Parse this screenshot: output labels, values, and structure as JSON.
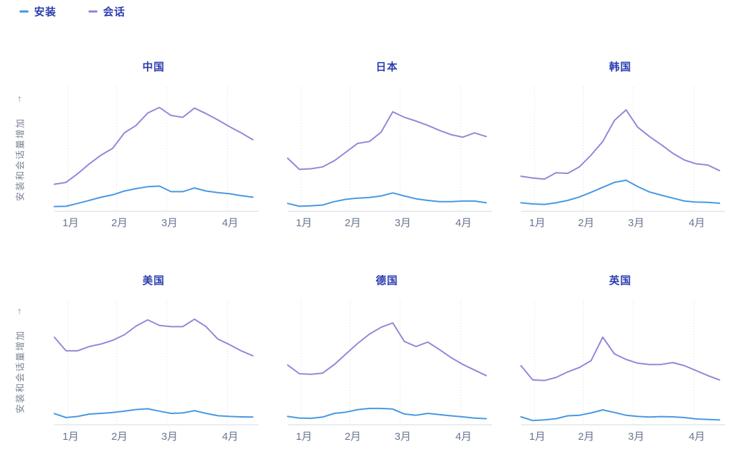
{
  "legend": {
    "items": [
      {
        "key": "installs",
        "label": "安装",
        "color": "#4697e3"
      },
      {
        "key": "sessions",
        "label": "会话",
        "color": "#9286d9"
      }
    ]
  },
  "y_axis": {
    "label": "安装和会话量增加",
    "arrow": "↑"
  },
  "x_ticks": [
    "1月",
    "2月",
    "3月",
    "4月"
  ],
  "colors": {
    "installs_line": "#4697e3",
    "sessions_line": "#9286d9",
    "title_text": "#2b3cae",
    "tick_text": "#68748e",
    "axis_line": "#d8dade",
    "gridline": "#d9dce4",
    "y_label_text": "#7b8294",
    "background": "#ffffff"
  },
  "chart_data": [
    {
      "type": "line",
      "title": "中国",
      "x_tick_labels": [
        "1月",
        "2月",
        "3月",
        "4月"
      ],
      "ylim": [
        0,
        100
      ],
      "y_units": "relative (no axis values shown)",
      "series": [
        {
          "key": "installs",
          "name": "安装",
          "values": [
            3.5,
            3.7,
            6,
            8.5,
            11,
            13,
            16,
            18,
            19.5,
            20,
            15.5,
            15.5,
            18.5,
            16,
            14.8,
            13.8,
            12.3,
            11
          ]
        },
        {
          "key": "sessions",
          "name": "会话",
          "values": [
            21.5,
            23,
            30,
            38,
            45,
            50.5,
            63,
            69,
            79,
            83.5,
            77,
            75.5,
            83,
            78.5,
            73.5,
            68,
            63,
            57.5
          ]
        }
      ]
    },
    {
      "type": "line",
      "title": "日本",
      "x_tick_labels": [
        "1月",
        "2月",
        "3月",
        "4月"
      ],
      "ylim": [
        0,
        100
      ],
      "y_units": "relative (no axis values shown)",
      "series": [
        {
          "key": "installs",
          "name": "安装",
          "values": [
            6,
            3.7,
            4.1,
            4.7,
            7.5,
            9.3,
            10.3,
            10.8,
            12,
            14.5,
            12,
            9.7,
            8.4,
            7.5,
            7.5,
            7.9,
            7.9,
            6.5
          ]
        },
        {
          "key": "sessions",
          "name": "会话",
          "values": [
            42.5,
            33.5,
            34,
            35.5,
            40.5,
            47.5,
            54.5,
            56,
            63.5,
            80,
            75.5,
            72.5,
            69,
            65,
            61.5,
            59.5,
            63,
            60
          ]
        }
      ]
    },
    {
      "type": "line",
      "title": "韩国",
      "x_tick_labels": [
        "1月",
        "2月",
        "3月",
        "4月"
      ],
      "ylim": [
        0,
        100
      ],
      "y_units": "relative (no axis values shown)",
      "series": [
        {
          "key": "installs",
          "name": "安装",
          "values": [
            6.5,
            5.6,
            5.2,
            6.5,
            8.4,
            11.2,
            15,
            19,
            23,
            24.7,
            19.6,
            15.3,
            12.7,
            10.3,
            7.9,
            7.1,
            6.9,
            6.2
          ]
        },
        {
          "key": "sessions",
          "name": "会话",
          "values": [
            28,
            26.5,
            25.6,
            30.8,
            30.3,
            35.5,
            45,
            56,
            73,
            81.5,
            67.5,
            60,
            53.5,
            46.5,
            41,
            38,
            37,
            32.5
          ]
        }
      ]
    },
    {
      "type": "line",
      "title": "美国",
      "x_tick_labels": [
        "1月",
        "2月",
        "3月",
        "4月"
      ],
      "ylim": [
        0,
        100
      ],
      "y_units": "relative (no axis values shown)",
      "series": [
        {
          "key": "installs",
          "name": "安装",
          "values": [
            8.8,
            5.6,
            6.5,
            8.4,
            9,
            9.7,
            10.8,
            12.1,
            12.7,
            10.8,
            9,
            9.3,
            11.2,
            9,
            7.1,
            6.5,
            6.2,
            6
          ]
        },
        {
          "key": "sessions",
          "name": "会话",
          "values": [
            70.5,
            59.5,
            59.5,
            63,
            65,
            68,
            72.5,
            79.5,
            84.5,
            80,
            79,
            79,
            85,
            79,
            69,
            64.5,
            59.5,
            55.5
          ]
        }
      ]
    },
    {
      "type": "line",
      "title": "德国",
      "x_tick_labels": [
        "1月",
        "2月",
        "3月",
        "4月"
      ],
      "ylim": [
        0,
        100
      ],
      "y_units": "relative (no axis values shown)",
      "series": [
        {
          "key": "installs",
          "name": "安装",
          "values": [
            6.5,
            5.2,
            5,
            6,
            9,
            10,
            12,
            13,
            13,
            12.5,
            8.5,
            7.5,
            9,
            8,
            7,
            6.2,
            5.2,
            4.7
          ]
        },
        {
          "key": "sessions",
          "name": "会话",
          "values": [
            48,
            41,
            40.5,
            41.5,
            48.5,
            57,
            65.5,
            73,
            78.5,
            82,
            67,
            63,
            66.5,
            60.5,
            54,
            48.5,
            44,
            39.5
          ]
        }
      ]
    },
    {
      "type": "line",
      "title": "英国",
      "x_tick_labels": [
        "1月",
        "2月",
        "3月",
        "4月"
      ],
      "ylim": [
        0,
        100
      ],
      "y_units": "relative (no axis values shown)",
      "series": [
        {
          "key": "installs",
          "name": "安装",
          "values": [
            6.2,
            3.2,
            3.7,
            4.7,
            7,
            7.5,
            9.3,
            11.8,
            9.7,
            7.5,
            6.5,
            6,
            6.4,
            6.2,
            5.6,
            4.5,
            4.1,
            3.7
          ]
        },
        {
          "key": "sessions",
          "name": "会话",
          "values": [
            47.5,
            36,
            35.5,
            38,
            42.5,
            46,
            51.5,
            70.5,
            57,
            52.5,
            49.5,
            48.5,
            48.5,
            50,
            47.5,
            43.5,
            39.5,
            36
          ]
        }
      ]
    }
  ]
}
